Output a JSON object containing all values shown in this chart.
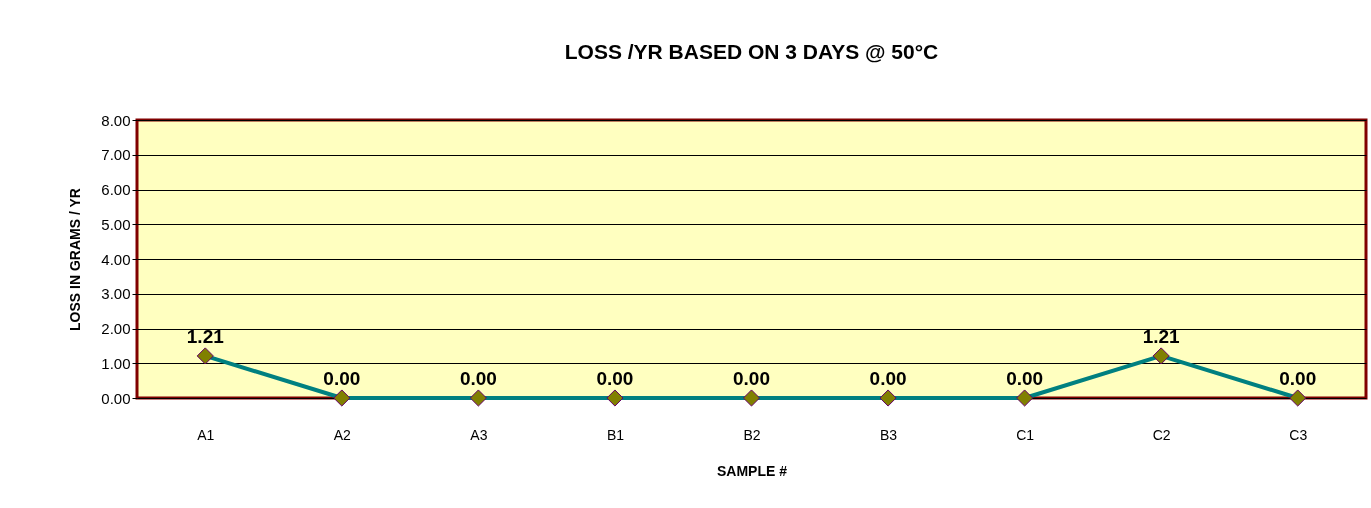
{
  "chart_data": {
    "type": "line",
    "title": "LOSS /YR BASED ON 3 DAYS @ 50°C",
    "xlabel": "SAMPLE #",
    "ylabel": "LOSS IN GRAMS / YR",
    "categories": [
      "A1",
      "A2",
      "A3",
      "B1",
      "B2",
      "B3",
      "C1",
      "C2",
      "C3"
    ],
    "series": [
      {
        "color": "#008080",
        "values": [
          1.21,
          0,
          0,
          0,
          0,
          0,
          0,
          1.21,
          0
        ],
        "value_labels": [
          "1.21",
          "0.00",
          "0.00",
          "0.00",
          "0.00",
          "0.00",
          "0.00",
          "1.21",
          "0.00"
        ]
      }
    ],
    "ylim": [
      0,
      8
    ],
    "yticks": [
      {
        "value": 0,
        "label": "0.00"
      },
      {
        "value": 1,
        "label": "1.00"
      },
      {
        "value": 2,
        "label": "2.00"
      },
      {
        "value": 3,
        "label": "3.00"
      },
      {
        "value": 4,
        "label": "4.00"
      },
      {
        "value": 5,
        "label": "5.00"
      },
      {
        "value": 6,
        "label": "6.00"
      },
      {
        "value": 7,
        "label": "7.00"
      },
      {
        "value": 8,
        "label": "8.00"
      }
    ],
    "grid": "y",
    "marker": "diamond",
    "line_style": "solid"
  }
}
